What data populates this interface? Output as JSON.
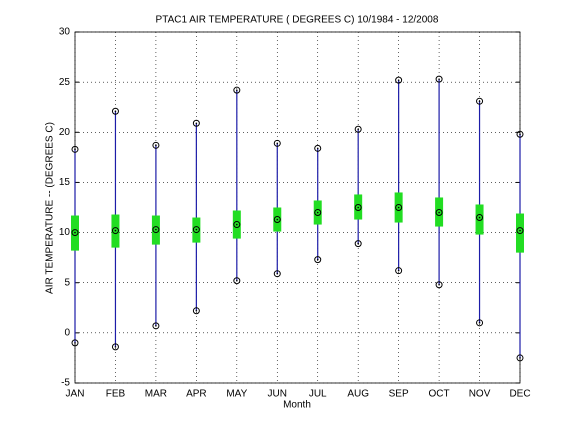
{
  "chart_data": {
    "type": "range",
    "title": "PTAC1  AIR TEMPERATURE ( DEGREES C) 10/1984 - 12/2008",
    "x_label": "Month",
    "y_label": "AIR TEMPERATURE -- (DEGREES C)",
    "categories": [
      "JAN",
      "FEB",
      "MAR",
      "APR",
      "MAY",
      "JUN",
      "JUL",
      "AUG",
      "SEP",
      "OCT",
      "NOV",
      "DEC"
    ],
    "max": [
      18.3,
      22.1,
      18.7,
      20.9,
      24.2,
      18.9,
      18.4,
      20.3,
      25.2,
      25.3,
      23.1,
      19.8
    ],
    "min": [
      -1.0,
      -1.4,
      0.7,
      2.2,
      5.2,
      5.9,
      7.3,
      8.9,
      6.2,
      4.8,
      1.0,
      -2.5
    ],
    "mean": [
      10.0,
      10.2,
      10.3,
      10.3,
      10.8,
      11.3,
      12.0,
      12.5,
      12.5,
      12.0,
      11.5,
      10.2
    ],
    "box_low": [
      8.2,
      8.5,
      8.8,
      9.0,
      9.4,
      10.1,
      10.8,
      11.3,
      11.0,
      10.6,
      9.8,
      8.0
    ],
    "box_high": [
      11.7,
      11.8,
      11.7,
      11.5,
      12.2,
      12.5,
      13.2,
      13.8,
      14.0,
      13.5,
      12.8,
      11.9
    ],
    "range_color": "#1c1ca8",
    "box_color": "#22dd22",
    "marker_color": "#000000",
    "ylim": [
      -5,
      30
    ],
    "yticks": [
      -5,
      0,
      5,
      10,
      15,
      20,
      25,
      30
    ],
    "grid": true
  }
}
